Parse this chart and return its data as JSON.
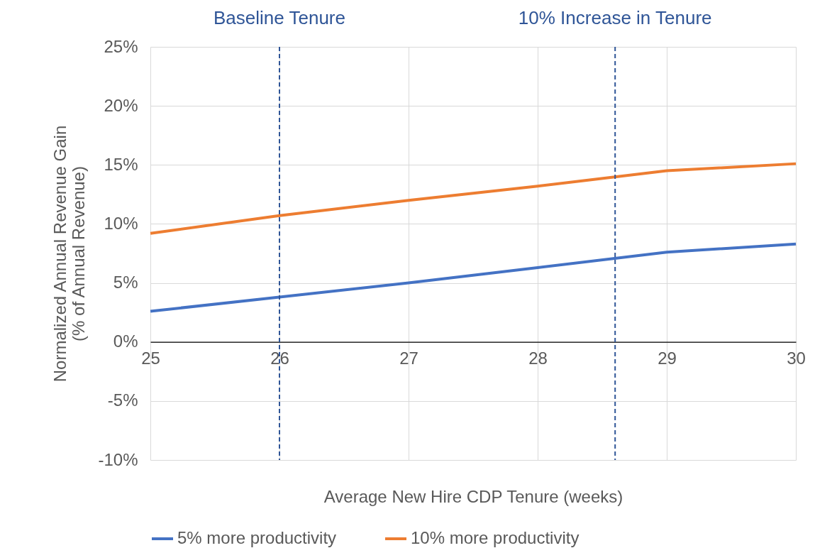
{
  "chart_data": {
    "type": "line",
    "xlabel": "Average New Hire CDP Tenure (weeks)",
    "ylabel": "Normalized Annual Revenue Gain\n(% of Annual Revenue)",
    "x": [
      25,
      26,
      27,
      28,
      29,
      30
    ],
    "series": [
      {
        "name": "5% more productivity",
        "color": "#4472c4",
        "values": [
          2.6,
          3.8,
          5.0,
          6.3,
          7.6,
          8.3
        ]
      },
      {
        "name": "10% more productivity",
        "color": "#ed7d31",
        "values": [
          9.2,
          10.7,
          12.0,
          13.2,
          14.5,
          15.1
        ]
      }
    ],
    "xlim": [
      25,
      30
    ],
    "xticks": [
      25,
      26,
      27,
      28,
      29,
      30
    ],
    "ylim": [
      -10,
      25
    ],
    "yticks": [
      {
        "value": -10,
        "label": "-10%"
      },
      {
        "value": -5,
        "label": "-5%"
      },
      {
        "value": 0,
        "label": "0%"
      },
      {
        "value": 5,
        "label": "5%"
      },
      {
        "value": 10,
        "label": "10%"
      },
      {
        "value": 15,
        "label": "15%"
      },
      {
        "value": 20,
        "label": "20%"
      },
      {
        "value": 25,
        "label": "25%"
      }
    ],
    "ref_lines": [
      {
        "axis": "x",
        "value": 26,
        "label": "Baseline Tenure",
        "color": "#2f5597",
        "line_style": "dashed"
      },
      {
        "axis": "x",
        "value": 28.6,
        "label": "10% Increase in Tenure",
        "color": "#2f5597",
        "line_style": "dashed"
      }
    ],
    "grid": true,
    "legend": "bottom",
    "marker": "none",
    "line_style": "solid"
  }
}
